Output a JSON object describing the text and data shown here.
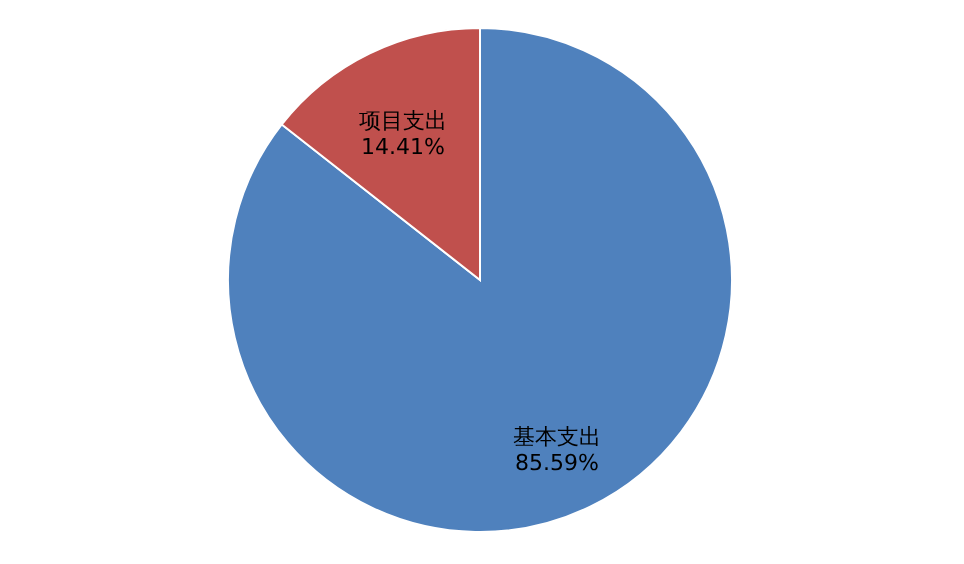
{
  "chart_data": {
    "type": "pie",
    "categories": [
      "基本支出",
      "项目支出"
    ],
    "values": [
      85.59,
      14.41
    ],
    "colors": [
      "#4f81bd",
      "#c0504d"
    ],
    "value_labels": [
      "85.59%",
      "14.41%"
    ]
  }
}
